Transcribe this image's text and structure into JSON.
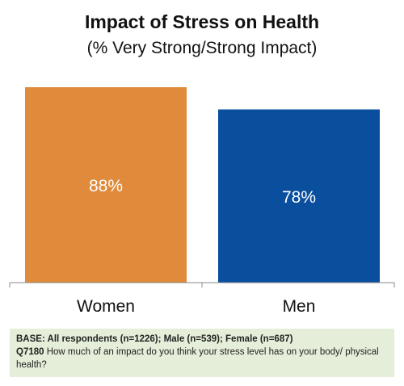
{
  "chart_data": {
    "type": "bar",
    "title": "Impact of Stress on Health",
    "subtitle": "(% Very Strong/Strong Impact)",
    "categories": [
      "Women",
      "Men"
    ],
    "values": [
      88,
      78
    ],
    "data_labels": [
      "88%",
      "78%"
    ],
    "colors": [
      "#e08a3c",
      "#0a4f9e"
    ],
    "ylim": [
      0,
      100
    ],
    "grid": false,
    "legend": "none"
  },
  "footnote": {
    "base": "BASE: All respondents (n=1226); Male (n=539); Female (n=687)",
    "question_id": "Q7180",
    "question_text": "How much of an impact do you think your stress level has on your body/ physical health?"
  }
}
